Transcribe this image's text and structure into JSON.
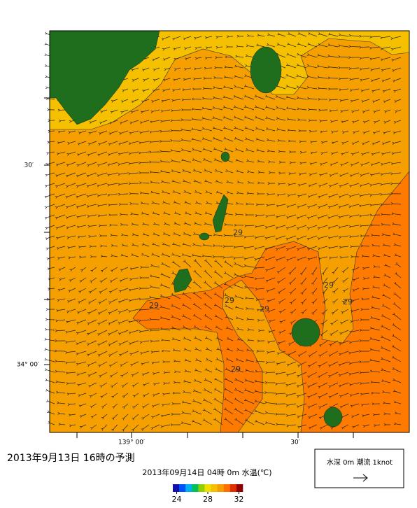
{
  "title": "2013年9月13日 16時の予測",
  "subtitle": "2013年09月14日 04時 0m 水温(℃)",
  "axes": {
    "left_labels": [
      "30′",
      "34° 00′"
    ],
    "bottom_labels": [
      "139° 00′",
      "30′"
    ]
  },
  "contour_labels": [
    "29",
    "29",
    "29",
    "29",
    "29",
    "29",
    "29"
  ],
  "legend": {
    "text": "水深 0m 潮流 1knot"
  },
  "colorbar": {
    "range": [
      23.5,
      32.5
    ],
    "ticks": [
      24,
      28,
      32
    ],
    "colors": [
      "#1010b0",
      "#0050ff",
      "#00b0f0",
      "#00c060",
      "#90d000",
      "#f0e000",
      "#f5c000",
      "#f5a000",
      "#ff7000",
      "#e03000",
      "#900000"
    ]
  }
}
